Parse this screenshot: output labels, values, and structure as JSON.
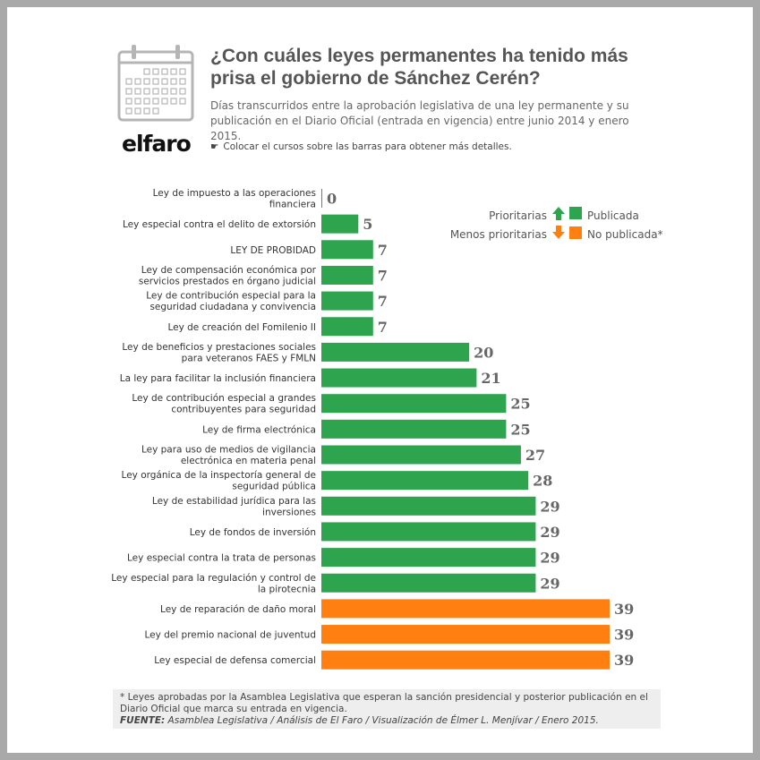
{
  "header": {
    "title": "¿Con cuáles leyes permanentes ha tenido más prisa el gobierno de Sánchez Cerén?",
    "subtitle": "Días transcurridos entre la aprobación legislativa de una ley permanente y su publicación en el Diario Oficial (entrada en vigencia) entre junio 2014 y enero 2015.",
    "hint_icon": "☛",
    "hint": "Colocar el cursos sobre las barras para obtener más detalles.",
    "logo": "elfaro",
    "icon": "calendar-icon"
  },
  "legend": {
    "prioritarias": "Prioritarias",
    "menos_prioritarias": "Menos prioritarias",
    "publicada": "Publicada",
    "no_publicada": "No publicada*"
  },
  "colors": {
    "publicada": "#2ea44f",
    "no_publicada": "#ff8010",
    "value_text": "#666666"
  },
  "chart_data": {
    "type": "bar",
    "orientation": "horizontal",
    "xlim": [
      0,
      39
    ],
    "categories": [
      [
        "Ley de impuesto a las operaciones",
        "financiera"
      ],
      [
        "Ley especial contra el delito de extorsión"
      ],
      [
        "LEY DE PROBIDAD"
      ],
      [
        "Ley de compensación económica por",
        "servicios prestados en órgano judicial"
      ],
      [
        "Ley de contribución especial para la",
        "seguridad ciudadana y convivencia"
      ],
      [
        "Ley de creación del Fomilenio II"
      ],
      [
        "Ley de beneficios y prestaciones sociales",
        "para veteranos FAES y FMLN"
      ],
      [
        "La ley para facilitar la inclusión financiera"
      ],
      [
        "Ley de contribución especial a grandes",
        "contribuyentes para seguridad"
      ],
      [
        "Ley de firma electrónica"
      ],
      [
        "Ley para uso de medios de vigilancia",
        "electrónica en materia penal"
      ],
      [
        "Ley orgánica de la inspectoría general de",
        "seguridad pública"
      ],
      [
        "Ley de estabilidad jurídica para las",
        "inversiones"
      ],
      [
        "Ley de fondos de inversión"
      ],
      [
        "Ley especial contra la trata de personas"
      ],
      [
        "Ley especial para la regulación y control de",
        "la pirotecnia"
      ],
      [
        "Ley de reparación de daño moral"
      ],
      [
        "Ley del premio nacional de juventud"
      ],
      [
        "Ley especial de defensa comercial"
      ]
    ],
    "values": [
      0,
      5,
      7,
      7,
      7,
      7,
      20,
      21,
      25,
      25,
      27,
      28,
      29,
      29,
      29,
      29,
      39,
      39,
      39
    ],
    "status": [
      "Publicada",
      "Publicada",
      "Publicada",
      "Publicada",
      "Publicada",
      "Publicada",
      "Publicada",
      "Publicada",
      "Publicada",
      "Publicada",
      "Publicada",
      "Publicada",
      "Publicada",
      "Publicada",
      "Publicada",
      "Publicada",
      "No publicada",
      "No publicada",
      "No publicada"
    ]
  },
  "footnote": {
    "note": "* Leyes aprobadas por la Asamblea Legislativa que esperan la sanción presidencial y posterior publicación en el Diario Oficial que marca su entrada en vigencia.",
    "source_key": "FUENTE:",
    "source": "Asamblea Legislativa / Análisis de El Faro / Visualización de Élmer L. Menjívar / Enero 2015."
  }
}
